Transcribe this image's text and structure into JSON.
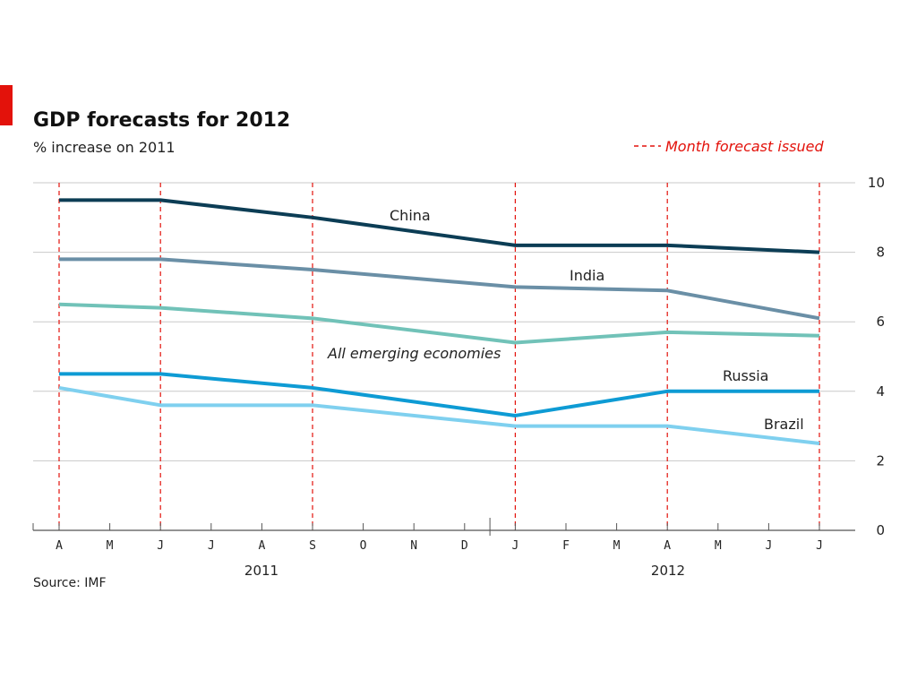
{
  "chart_data": {
    "type": "line",
    "title": "GDP forecasts for 2012",
    "subtitle": "% increase on 2011",
    "legend": {
      "label": "Month forecast issued",
      "placement": "top-right",
      "color": "#e3120b"
    },
    "x_ticks": [
      "A",
      "M",
      "J",
      "J",
      "A",
      "S",
      "O",
      "N",
      "D",
      "J",
      "F",
      "M",
      "A",
      "M",
      "J",
      "J"
    ],
    "years": [
      "2011",
      "2012"
    ],
    "forecast_months": [
      "Apr 2011",
      "Jun 2011",
      "Sep 2011",
      "Jan 2012",
      "Apr 2012",
      "Jul 2012"
    ],
    "ylim": [
      0,
      10
    ],
    "y_ticks": [
      0,
      2,
      4,
      6,
      8,
      10
    ],
    "grid": true,
    "series": [
      {
        "name": "China",
        "color": "#0c3d55",
        "x": [
          "Apr 2011",
          "Jun 2011",
          "Sep 2011",
          "Jan 2012",
          "Apr 2012",
          "Jul 2012"
        ],
        "values": [
          9.5,
          9.5,
          9.0,
          8.2,
          8.2,
          8.0
        ]
      },
      {
        "name": "India",
        "color": "#6a8fa6",
        "x": [
          "Apr 2011",
          "Jun 2011",
          "Sep 2011",
          "Jan 2012",
          "Apr 2012",
          "Jul 2012"
        ],
        "values": [
          7.8,
          7.8,
          7.5,
          7.0,
          6.9,
          6.1
        ]
      },
      {
        "name": "All emerging economies",
        "color": "#71c2b8",
        "x": [
          "Apr 2011",
          "Jun 2011",
          "Sep 2011",
          "Jan 2012",
          "Apr 2012",
          "Jul 2012"
        ],
        "values": [
          6.5,
          6.4,
          6.1,
          5.4,
          5.7,
          5.6
        ]
      },
      {
        "name": "Russia",
        "color": "#0e9bd4",
        "x": [
          "Apr 2011",
          "Jun 2011",
          "Sep 2011",
          "Jan 2012",
          "Apr 2012",
          "Jul 2012"
        ],
        "values": [
          4.5,
          4.5,
          4.1,
          3.3,
          4.0,
          4.0
        ]
      },
      {
        "name": "Brazil",
        "color": "#7fd0ef",
        "x": [
          "Apr 2011",
          "Jun 2011",
          "Sep 2011",
          "Jan 2012",
          "Apr 2012",
          "Jul 2012"
        ],
        "values": [
          4.1,
          3.6,
          3.6,
          3.0,
          3.0,
          2.5
        ]
      }
    ],
    "source": "Source: IMF"
  }
}
